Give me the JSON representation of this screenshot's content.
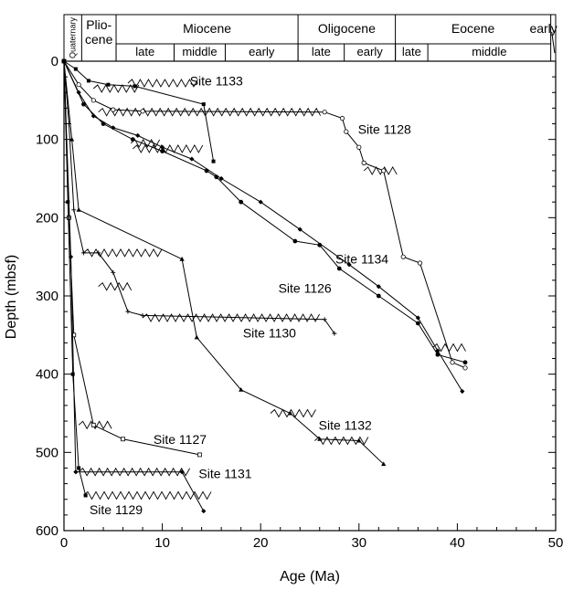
{
  "chart_data": {
    "type": "line",
    "xlabel": "Age (Ma)",
    "ylabel": "Depth (mbsf)",
    "xlim": [
      0,
      50
    ],
    "ylim": [
      600,
      0
    ],
    "x_ticks": [
      "0",
      "10",
      "20",
      "30",
      "40",
      "50"
    ],
    "y_ticks": [
      "0",
      "100",
      "200",
      "300",
      "400",
      "500",
      "600"
    ],
    "grid": false,
    "timescale": {
      "quaternary": "Quaternary",
      "pliocene": "Plio-\ncene",
      "epochs": [
        {
          "name": "Miocene",
          "start": 5.3,
          "end": 23.8
        },
        {
          "name": "Oligocene",
          "start": 23.8,
          "end": 33.7
        },
        {
          "name": "Eocene",
          "start": 33.7,
          "end": 49.5
        },
        {
          "name": "early",
          "start": 49.5,
          "end": 50
        }
      ],
      "subdivisions": [
        {
          "name": "late",
          "start": 5.3,
          "end": 11.2
        },
        {
          "name": "middle",
          "start": 11.2,
          "end": 16.4
        },
        {
          "name": "early",
          "start": 16.4,
          "end": 23.8
        },
        {
          "name": "late",
          "start": 23.8,
          "end": 28.5
        },
        {
          "name": "early",
          "start": 28.5,
          "end": 33.7
        },
        {
          "name": "late",
          "start": 33.7,
          "end": 37.0
        },
        {
          "name": "middle",
          "start": 37.0,
          "end": 49.5
        }
      ]
    },
    "series": [
      {
        "name": "Site 1133",
        "marker": "square",
        "x": [
          0,
          1.2,
          2.5,
          4.5,
          7.2,
          14.2,
          15.2
        ],
        "y": [
          0,
          10,
          25,
          30,
          32,
          55,
          128
        ]
      },
      {
        "name": "Site 1128",
        "marker": "circle",
        "x": [
          0,
          1.5,
          3,
          5,
          8,
          26.5,
          28.3,
          28.7,
          30,
          30.5,
          32.5,
          34.5,
          36.2,
          39.5,
          40.8
        ],
        "y": [
          0,
          30,
          50,
          62,
          64,
          65,
          73,
          90,
          110,
          130,
          140,
          250,
          258,
          385,
          392
        ]
      },
      {
        "name": "Site 1134",
        "marker": "dot",
        "x": [
          0,
          2,
          4,
          7,
          10,
          14.5,
          15.5,
          18,
          23.5,
          26,
          28,
          32,
          36,
          38,
          40.8
        ],
        "y": [
          0,
          55,
          80,
          100,
          115,
          140,
          148,
          180,
          230,
          235,
          265,
          300,
          335,
          375,
          385
        ]
      },
      {
        "name": "Site 1126",
        "marker": "diamond",
        "x": [
          0,
          1.5,
          3,
          5,
          7.5,
          10,
          13,
          16,
          20,
          24,
          29,
          32,
          36,
          38,
          40.5
        ],
        "y": [
          0,
          40,
          70,
          85,
          95,
          110,
          125,
          150,
          180,
          215,
          260,
          288,
          328,
          370,
          422
        ]
      },
      {
        "name": "Site 1130",
        "marker": "plus",
        "x": [
          0,
          0.5,
          1,
          2,
          3.5,
          5,
          6.5,
          8,
          26.5,
          27.5
        ],
        "y": [
          0,
          80,
          190,
          245,
          245,
          270,
          320,
          325,
          330,
          348
        ]
      },
      {
        "name": "Site 1132",
        "marker": "triangle",
        "x": [
          0,
          0.8,
          1.5,
          12,
          13.5,
          18,
          23,
          26,
          30,
          32.5
        ],
        "y": [
          0,
          100,
          190,
          253,
          353,
          420,
          450,
          483,
          485,
          515
        ]
      },
      {
        "name": "Site 1127",
        "marker": "square-open",
        "x": [
          0,
          0.5,
          1,
          3,
          6,
          13.8
        ],
        "y": [
          0,
          200,
          350,
          465,
          483,
          503
        ]
      },
      {
        "name": "Site 1131",
        "marker": "diamond",
        "x": [
          0,
          0.7,
          1.2,
          12,
          14.2
        ],
        "y": [
          0,
          250,
          525,
          525,
          575
        ]
      },
      {
        "name": "Site 1129",
        "marker": "square",
        "x": [
          0,
          0.4,
          0.9,
          1.5,
          2.2
        ],
        "y": [
          0,
          180,
          400,
          520,
          555
        ]
      }
    ],
    "hiatuses": [
      {
        "x": [
          6.5,
          14.0
        ],
        "y": 28
      },
      {
        "x": [
          3.5,
          26.5
        ],
        "y": 65
      },
      {
        "x": [
          3.0,
          8.0
        ],
        "y": 35
      },
      {
        "x": [
          6.8,
          10.0
        ],
        "y": 105
      },
      {
        "x": [
          7.0,
          14.5
        ],
        "y": 112
      },
      {
        "x": [
          30.5,
          34.0
        ],
        "y": 140
      },
      {
        "x": [
          2.0,
          10.0
        ],
        "y": 245
      },
      {
        "x": [
          3.5,
          7.0
        ],
        "y": 288
      },
      {
        "x": [
          8.0,
          26.0
        ],
        "y": 328
      },
      {
        "x": [
          21.0,
          26.0
        ],
        "y": 450
      },
      {
        "x": [
          25.5,
          31.0
        ],
        "y": 485
      },
      {
        "x": [
          1.5,
          5.0
        ],
        "y": 465
      },
      {
        "x": [
          1.5,
          13.0
        ],
        "y": 525
      },
      {
        "x": [
          2.0,
          15.0
        ],
        "y": 555
      },
      {
        "x": [
          37.5,
          41.0
        ],
        "y": 366
      }
    ],
    "labels": [
      {
        "text": "Site 1133",
        "x": 12.8,
        "y": 25
      },
      {
        "text": "Site 1128",
        "x": 29.9,
        "y": 87
      },
      {
        "text": "Site 1134",
        "x": 27.6,
        "y": 253
      },
      {
        "text": "Site 1126",
        "x": 21.8,
        "y": 290
      },
      {
        "text": "Site 1130",
        "x": 18.2,
        "y": 347
      },
      {
        "text": "Site 1132",
        "x": 25.9,
        "y": 465
      },
      {
        "text": "Site 1127",
        "x": 9.1,
        "y": 483
      },
      {
        "text": "Site 1131",
        "x": 13.7,
        "y": 527
      },
      {
        "text": "Site 1129",
        "x": 2.6,
        "y": 573
      }
    ]
  }
}
